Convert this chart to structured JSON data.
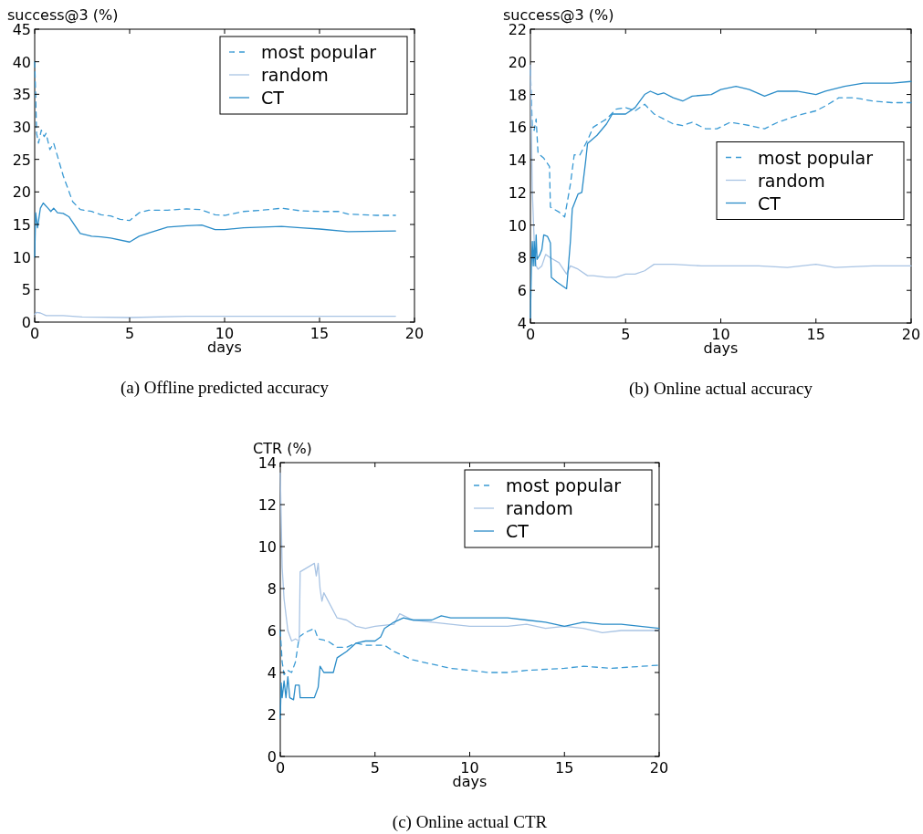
{
  "chart_data": [
    {
      "type": "line",
      "title": "(a)  Offline predicted accuracy",
      "xlabel": "days",
      "ylabel": "success@3 (%)",
      "xlim": [
        0,
        20
      ],
      "xticks": [
        0,
        5,
        10,
        15,
        20
      ],
      "ylim": [
        0,
        45
      ],
      "yticks": [
        0,
        5,
        10,
        15,
        20,
        25,
        30,
        35,
        40,
        45
      ],
      "grid": false,
      "legend": "top right",
      "marker": "none",
      "series": [
        {
          "name": "most popular",
          "color": "#3a9ad4",
          "line_style": "dashed",
          "x": [
            0,
            0.05,
            0.1,
            0.2,
            0.35,
            0.5,
            0.6,
            0.8,
            1.0,
            1.1,
            1.5,
            2,
            2.4,
            3,
            3.5,
            4,
            4.5,
            5,
            5.5,
            6,
            7,
            8,
            8.7,
            9.5,
            10,
            11,
            12,
            13,
            14,
            15,
            16,
            16.5,
            18,
            19
          ],
          "values": [
            40,
            35,
            29,
            27.5,
            29.5,
            28.5,
            29,
            26.5,
            27.5,
            26.5,
            22.5,
            18.5,
            17.3,
            17,
            16.5,
            16.3,
            15.8,
            15.6,
            16.8,
            17.2,
            17.2,
            17.4,
            17.3,
            16.5,
            16.4,
            17,
            17.2,
            17.5,
            17.1,
            17,
            17,
            16.6,
            16.4,
            16.4
          ]
        },
        {
          "name": "random",
          "color": "#a9c4e4",
          "line_style": "solid",
          "x": [
            0,
            0.1,
            0.3,
            0.6,
            1.5,
            2.5,
            5,
            8,
            12,
            16,
            19
          ],
          "values": [
            1.2,
            1.5,
            1.4,
            1.0,
            1.0,
            0.8,
            0.7,
            0.9,
            0.9,
            0.9,
            0.9
          ]
        },
        {
          "name": "CT",
          "color": "#2a8cc8",
          "line_style": "solid",
          "x": [
            0,
            0.05,
            0.15,
            0.3,
            0.45,
            0.7,
            0.85,
            1,
            1.2,
            1.5,
            1.8,
            2.4,
            3,
            3.5,
            4,
            5,
            5.5,
            6,
            7,
            8,
            8.8,
            9.5,
            10,
            11,
            12,
            13,
            14,
            15,
            16.5,
            19
          ],
          "values": [
            10,
            16.8,
            14.5,
            17.5,
            18.3,
            17.5,
            17,
            17.5,
            16.8,
            16.7,
            16.2,
            13.6,
            13.2,
            13.1,
            12.9,
            12.3,
            13.2,
            13.7,
            14.6,
            14.8,
            14.9,
            14.2,
            14.2,
            14.5,
            14.6,
            14.7,
            14.5,
            14.3,
            13.9,
            14
          ]
        }
      ]
    },
    {
      "type": "line",
      "title": "(b)  Online actual accuracy",
      "xlabel": "days",
      "ylabel": "success@3 (%)",
      "xlim": [
        0,
        20
      ],
      "xticks": [
        0,
        5,
        10,
        15,
        20
      ],
      "ylim": [
        4,
        22
      ],
      "yticks": [
        4,
        6,
        8,
        10,
        12,
        14,
        16,
        18,
        20,
        22
      ],
      "grid": false,
      "legend": "right",
      "marker": "none",
      "series": [
        {
          "name": "most popular",
          "color": "#3a9ad4",
          "line_style": "dashed",
          "x": [
            0,
            0.1,
            0.2,
            0.3,
            0.4,
            0.7,
            1,
            1.05,
            1.5,
            1.8,
            2.1,
            2.3,
            2.6,
            3,
            3.3,
            4,
            4.5,
            5,
            5.5,
            6,
            6.5,
            7,
            7.5,
            8,
            8.5,
            9.2,
            9.8,
            10.5,
            11,
            11.5,
            12.3,
            13,
            14,
            15,
            15.5,
            16.2,
            17,
            18,
            19,
            20
          ],
          "values": [
            19.5,
            16,
            15.8,
            16.5,
            14.4,
            14.1,
            13.6,
            11.1,
            10.8,
            10.5,
            12.5,
            14.3,
            14.3,
            15.2,
            16,
            16.5,
            17.1,
            17.2,
            17,
            17.4,
            16.8,
            16.5,
            16.2,
            16.1,
            16.3,
            15.9,
            15.9,
            16.3,
            16.2,
            16.1,
            15.9,
            16.3,
            16.7,
            17,
            17.3,
            17.8,
            17.8,
            17.6,
            17.5,
            17.5
          ]
        },
        {
          "name": "random",
          "color": "#a9c4e4",
          "line_style": "solid",
          "x": [
            0,
            0.05,
            0.1,
            0.2,
            0.3,
            0.4,
            0.6,
            0.8,
            1.05,
            1.5,
            1.9,
            2.1,
            2.5,
            3,
            3.3,
            4,
            4.5,
            5,
            5.5,
            6,
            6.5,
            7.5,
            9,
            10,
            11,
            12,
            13.5,
            15,
            16,
            18,
            20
          ],
          "values": [
            19.8,
            16,
            12,
            9,
            7.5,
            7.3,
            7.5,
            8.2,
            8,
            7.7,
            7,
            7.5,
            7.3,
            6.9,
            6.9,
            6.8,
            6.8,
            7,
            7,
            7.2,
            7.6,
            7.6,
            7.5,
            7.5,
            7.5,
            7.5,
            7.4,
            7.6,
            7.4,
            7.5,
            7.5
          ]
        },
        {
          "name": "CT",
          "color": "#2a8cc8",
          "line_style": "solid",
          "x": [
            0,
            0.05,
            0.1,
            0.15,
            0.2,
            0.25,
            0.3,
            0.35,
            0.5,
            0.6,
            0.7,
            0.9,
            1.05,
            1.1,
            1.4,
            1.9,
            2.1,
            2.2,
            2.5,
            2.7,
            2.9,
            3,
            3.5,
            4,
            4.3,
            5,
            5.5,
            6,
            6.3,
            6.7,
            7,
            7.5,
            8,
            8.5,
            9.5,
            10,
            10.8,
            11.5,
            12.3,
            13,
            14,
            15,
            15.5,
            16.5,
            17.5,
            19,
            20
          ],
          "values": [
            4.3,
            7.5,
            9,
            7.5,
            9,
            7.5,
            9.4,
            7.9,
            8.2,
            8.5,
            9.4,
            9.3,
            8.9,
            6.8,
            6.5,
            6.1,
            9,
            11,
            11.9,
            12,
            13.9,
            15,
            15.5,
            16.2,
            16.8,
            16.8,
            17.2,
            18,
            18.2,
            18,
            18.1,
            17.8,
            17.6,
            17.9,
            18,
            18.3,
            18.5,
            18.3,
            17.9,
            18.2,
            18.2,
            18,
            18.2,
            18.5,
            18.7,
            18.7,
            18.8
          ]
        }
      ]
    },
    {
      "type": "line",
      "title": "(c)  Online actual CTR",
      "xlabel": "days",
      "ylabel": "CTR (%)",
      "xlim": [
        0,
        20
      ],
      "xticks": [
        0,
        5,
        10,
        15,
        20
      ],
      "ylim": [
        0,
        14
      ],
      "yticks": [
        0,
        2,
        4,
        6,
        8,
        10,
        12,
        14
      ],
      "grid": false,
      "legend": "top right",
      "marker": "none",
      "series": [
        {
          "name": "most popular",
          "color": "#3a9ad4",
          "line_style": "dashed",
          "x": [
            0,
            0.1,
            0.2,
            0.4,
            0.6,
            0.8,
            1,
            1.3,
            1.8,
            2,
            2.5,
            3,
            3.5,
            4,
            4.5,
            5,
            5.5,
            6,
            7,
            8,
            9,
            10,
            11,
            12,
            13,
            15,
            16,
            17.5,
            20
          ],
          "values": [
            6,
            4.5,
            3.9,
            4.1,
            4,
            4.5,
            5.7,
            5.9,
            6.1,
            5.6,
            5.5,
            5.2,
            5.2,
            5.4,
            5.3,
            5.3,
            5.3,
            5,
            4.6,
            4.4,
            4.2,
            4.1,
            4,
            4,
            4.1,
            4.2,
            4.3,
            4.2,
            4.35
          ]
        },
        {
          "name": "random",
          "color": "#a9c4e4",
          "line_style": "solid",
          "x": [
            0,
            0.1,
            0.2,
            0.4,
            0.6,
            0.8,
            1,
            1.05,
            1.8,
            1.9,
            2,
            2.1,
            2.2,
            2.3,
            3,
            3.5,
            4,
            4.5,
            5,
            6,
            6.3,
            7,
            8,
            9,
            10,
            11,
            12,
            13,
            14,
            15,
            16,
            17,
            18,
            20
          ],
          "values": [
            13.5,
            9,
            7.5,
            6,
            5.5,
            5.6,
            5.5,
            8.8,
            9.2,
            8.6,
            9.2,
            8,
            7.4,
            7.8,
            6.6,
            6.5,
            6.2,
            6.1,
            6.2,
            6.3,
            6.8,
            6.5,
            6.4,
            6.3,
            6.2,
            6.2,
            6.2,
            6.3,
            6.1,
            6.2,
            6.1,
            5.9,
            6,
            6
          ]
        },
        {
          "name": "CT",
          "color": "#2a8cc8",
          "line_style": "solid",
          "x": [
            0,
            0.05,
            0.1,
            0.2,
            0.3,
            0.4,
            0.5,
            0.7,
            0.8,
            1,
            1.05,
            1.8,
            2,
            2.1,
            2.3,
            2.8,
            3,
            3.5,
            4,
            4.5,
            5,
            5.3,
            5.5,
            6,
            6.5,
            7,
            8,
            8.5,
            9,
            10,
            11,
            12,
            13,
            14,
            15,
            16,
            17,
            18,
            20
          ],
          "values": [
            1.8,
            3.5,
            2.8,
            3.6,
            2.8,
            3.8,
            2.8,
            2.7,
            3.4,
            3.4,
            2.8,
            2.8,
            3.3,
            4.3,
            4,
            4,
            4.7,
            5,
            5.4,
            5.5,
            5.5,
            5.7,
            6.1,
            6.4,
            6.6,
            6.5,
            6.5,
            6.7,
            6.6,
            6.6,
            6.6,
            6.6,
            6.5,
            6.4,
            6.2,
            6.4,
            6.3,
            6.3,
            6.1
          ]
        }
      ]
    }
  ]
}
